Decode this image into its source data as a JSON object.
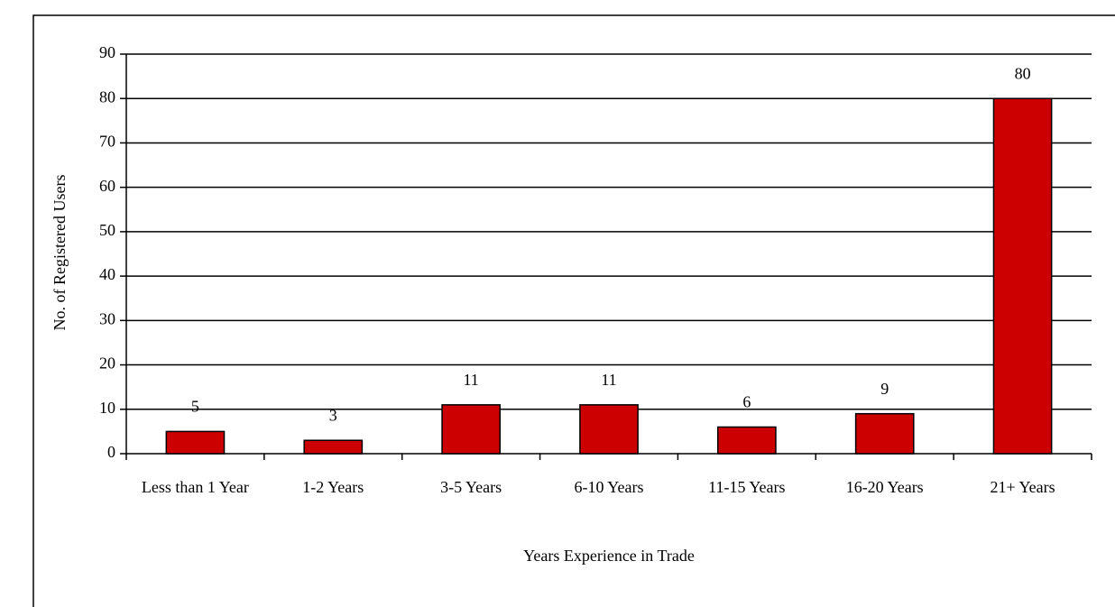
{
  "chart_data": {
    "type": "bar",
    "x_label": "Years Experience in Trade",
    "y_label": "No. of Registered Users",
    "categories": [
      "Less than 1 Year",
      "1-2 Years",
      "3-5 Years",
      "6-10 Years",
      "11-15 Years",
      "16-20 Years",
      "21+ Years"
    ],
    "values": [
      5,
      3,
      11,
      11,
      6,
      9,
      80
    ],
    "color": "#cc0000",
    "ylim": [
      0,
      90
    ],
    "yticks": [
      0,
      10,
      20,
      30,
      40,
      50,
      60,
      70,
      80,
      90
    ],
    "grid": true
  }
}
